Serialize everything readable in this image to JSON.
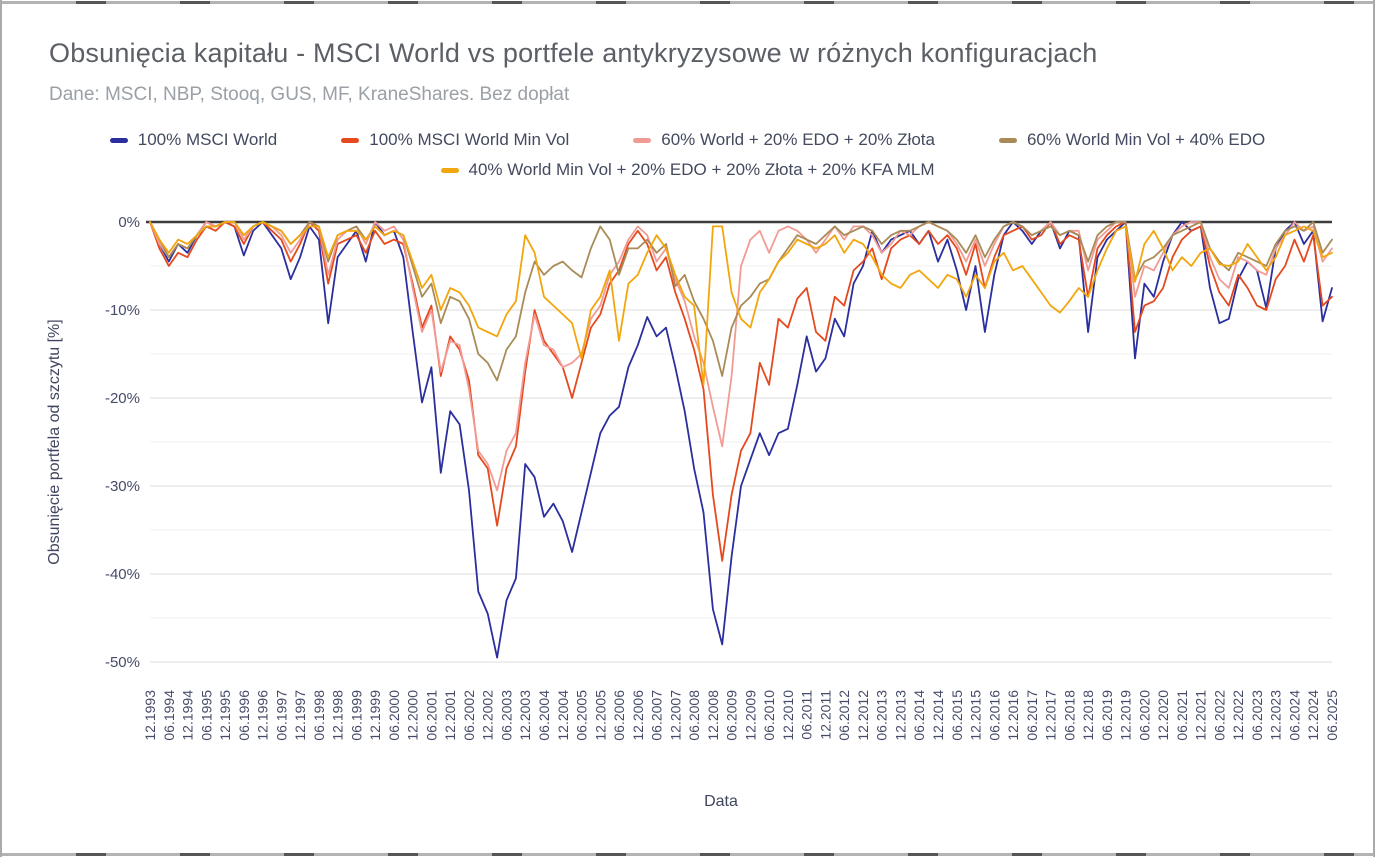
{
  "page": {
    "title": "Obsunięcia kapitału - MSCI World vs portfele antykryzysowe w różnych konfiguracjach",
    "subtitle": "Dane: MSCI, NBP, Stooq, GUS, MF, KraneShares. Bez dopłat"
  },
  "axes": {
    "x_title": "Data",
    "y_title": "Obsunięcie portfela od szczytu [%]"
  },
  "colors": {
    "navy": "#2a2f9d",
    "red": "#e5491e",
    "pink": "#f29b94",
    "brown": "#a98b57",
    "yellow": "#f2a60d",
    "grid_major": "#dcdcdc",
    "grid_minor": "#f1f1f1",
    "zero_line": "#3c3c3c",
    "tick_text": "#464b69"
  },
  "chart_data": {
    "type": "line",
    "title": "Obsunięcia kapitału - MSCI World vs portfele antykryzysowe w różnych konfiguracjach",
    "xlabel": "Data",
    "ylabel": "Obsunięcie portfela od szczytu [%]",
    "ylim": [
      -50,
      0
    ],
    "y_major_step": 10,
    "y_minor_step": 5,
    "grid": true,
    "legend_position": "top",
    "y_tick_labels": [
      "0%",
      "-10%",
      "-20%",
      "-30%",
      "-40%",
      "-50%"
    ],
    "x_unit": "quarters from 12.1993 to 06.2025 (labels shown every 2nd quarter)",
    "x_tick_labels": [
      "12.1993",
      "06.1994",
      "12.1994",
      "06.1995",
      "12.1995",
      "06.1996",
      "12.1996",
      "06.1997",
      "12.1997",
      "06.1998",
      "12.1998",
      "06.1999",
      "12.1999",
      "06.2000",
      "12.2000",
      "06.2001",
      "12.2001",
      "06.2002",
      "12.2002",
      "06.2003",
      "12.2003",
      "06.2004",
      "12.2004",
      "06.2005",
      "12.2005",
      "06.2006",
      "12.2006",
      "06.2007",
      "12.2007",
      "06.2008",
      "12.2008",
      "06.2009",
      "12.2009",
      "06.2010",
      "12.2010",
      "06.2011",
      "12.2011",
      "06.2012",
      "12.2012",
      "06.2013",
      "12.2013",
      "06.2014",
      "12.2014",
      "06.2015",
      "12.2015",
      "06.2016",
      "12.2016",
      "06.2017",
      "12.2017",
      "06.2018",
      "12.2018",
      "06.2019",
      "12.2019",
      "06.2020",
      "12.2020",
      "06.2021",
      "12.2021",
      "06.2022",
      "12.2022",
      "06.2023",
      "12.2023",
      "06.2024",
      "12.2024",
      "06.2025"
    ],
    "series": [
      {
        "name": "100% MSCI World",
        "color": "#2a2f9d",
        "values": [
          0,
          -2.5,
          -4.5,
          -2.5,
          -3.5,
          -1.5,
          0,
          -0.5,
          0,
          -0.5,
          -3.8,
          -1,
          0,
          -1.5,
          -3,
          -6.5,
          -4,
          -0.5,
          -2,
          -11.5,
          -4,
          -2.5,
          -1,
          -4.5,
          0,
          -1.5,
          -1,
          -4,
          -12.5,
          -20.5,
          -16.5,
          -28.5,
          -21.5,
          -23,
          -30.5,
          -42,
          -44.5,
          -49.5,
          -43,
          -40.5,
          -27.5,
          -29,
          -33.5,
          -32,
          -34,
          -37.5,
          -33,
          -28.5,
          -24,
          -22,
          -21,
          -16.5,
          -14,
          -10.8,
          -13,
          -12,
          -16.5,
          -21.5,
          -28,
          -33,
          -44,
          -48,
          -38,
          -30,
          -27,
          -24,
          -26.5,
          -24,
          -23.5,
          -18.5,
          -13,
          -17,
          -15.5,
          -11,
          -13,
          -7,
          -5,
          -1,
          -3.5,
          -2,
          -1.5,
          -1,
          -2.5,
          -1,
          -4.5,
          -2,
          -5.5,
          -10,
          -5,
          -12.5,
          -6,
          -1.5,
          0,
          -1,
          -2.5,
          -1,
          0,
          -3,
          -1,
          -1.5,
          -12.5,
          -4,
          -2,
          -1,
          0,
          -15.5,
          -7,
          -8.5,
          -4.5,
          -1.5,
          0,
          -1,
          -0.5,
          -7.5,
          -11.5,
          -11,
          -6.5,
          -4.5,
          -5.5,
          -9.8,
          -3,
          -1,
          0,
          -2.5,
          -1,
          -11.3,
          -7.5
        ]
      },
      {
        "name": "100% MSCI World Min Vol",
        "color": "#e5491e",
        "values": [
          0,
          -3,
          -5,
          -3.5,
          -4,
          -2,
          -0.5,
          -1,
          0,
          -0.5,
          -2.5,
          -0.5,
          0,
          -1,
          -2,
          -4.5,
          -2.5,
          0,
          -1,
          -7,
          -2.5,
          -2,
          -1.5,
          -3.5,
          -1,
          -2.5,
          -2,
          -2.5,
          -7,
          -12,
          -9.5,
          -17.5,
          -13,
          -14.5,
          -18,
          -26.5,
          -28,
          -34.5,
          -28,
          -25.5,
          -17,
          -10,
          -13.5,
          -15,
          -16.5,
          -20,
          -16,
          -12,
          -10.5,
          -7,
          -5.5,
          -2.5,
          -1,
          -2.5,
          -5.5,
          -4,
          -8,
          -11,
          -14.5,
          -19,
          -31,
          -38.5,
          -31,
          -26,
          -24,
          -16,
          -18.5,
          -11,
          -12,
          -8.7,
          -7.5,
          -12.5,
          -13.5,
          -8.5,
          -9.5,
          -5.5,
          -4.5,
          -3,
          -6.5,
          -3,
          -2,
          -1.5,
          -2.5,
          -1,
          -2.5,
          -1.5,
          -3,
          -6,
          -2.5,
          -7.5,
          -4,
          -1.5,
          -1,
          -0.5,
          -2,
          -1.5,
          0,
          -2.5,
          -1.5,
          -2,
          -8.5,
          -3,
          -1.5,
          -0.5,
          0,
          -12.5,
          -9.5,
          -9,
          -7.5,
          -4,
          -2,
          -1,
          -0.5,
          -5,
          -8,
          -9.5,
          -6,
          -7.5,
          -9.5,
          -10,
          -6.5,
          -5,
          -2,
          -4.5,
          -1.5,
          -9.5,
          -8.5
        ]
      },
      {
        "name": "60% World + 20% EDO + 20% Złota",
        "color": "#f29b94",
        "values": [
          0,
          -2.5,
          -4,
          -2.5,
          -3,
          -1.5,
          0,
          -0.5,
          0,
          0,
          -2,
          -0.5,
          0,
          -0.5,
          -1.5,
          -3.5,
          -2,
          0,
          -0.5,
          -6,
          -2,
          -1,
          -0.5,
          -2.5,
          0,
          -1,
          -0.5,
          -2,
          -7.5,
          -12.5,
          -10,
          -17,
          -13.5,
          -14,
          -19,
          -26,
          -27.5,
          -30.5,
          -26,
          -24,
          -16,
          -10.5,
          -14,
          -14.5,
          -16.5,
          -16,
          -15,
          -11,
          -9.5,
          -6,
          -4.5,
          -2,
          -0.5,
          -1.5,
          -4.5,
          -3,
          -6.5,
          -9,
          -13,
          -16,
          -21,
          -25.5,
          -17.5,
          -5,
          -2,
          -1,
          -3.5,
          -1,
          -0.5,
          -1,
          -2,
          -3.5,
          -2,
          -0.5,
          -2,
          -0.5,
          -0.5,
          -1.5,
          -3.5,
          -2.5,
          -1,
          -1.5,
          -0.5,
          0,
          -0.5,
          -1,
          -2.5,
          -4.5,
          -2,
          -5,
          -2.5,
          -0.5,
          0,
          -0.5,
          -1.5,
          -1,
          0,
          -1.5,
          -1,
          -1,
          -5.5,
          -2,
          -1,
          0,
          0,
          -8.5,
          -5,
          -5.5,
          -3.5,
          -1.5,
          -0.5,
          0,
          0,
          -4,
          -6.5,
          -7.5,
          -4,
          -4.5,
          -5.5,
          -6,
          -3,
          -1.5,
          0,
          -1,
          -0.5,
          -4.5,
          -3
        ]
      },
      {
        "name": "60% World Min Vol + 40% EDO",
        "color": "#a98b57",
        "values": [
          0,
          -2,
          -4,
          -2.5,
          -3,
          -1.5,
          -0.5,
          -0.5,
          0,
          0,
          -1.5,
          -0.5,
          0,
          -0.5,
          -1,
          -2.5,
          -1.5,
          0,
          -0.5,
          -4.5,
          -1.5,
          -1,
          -0.5,
          -2,
          -0.5,
          -1.5,
          -1,
          -1.5,
          -5,
          -8.5,
          -7,
          -11.5,
          -8.5,
          -9,
          -11,
          -15,
          -16,
          -18,
          -14.5,
          -13,
          -8,
          -4.5,
          -6,
          -5,
          -4.5,
          -5.5,
          -6.3,
          -3,
          -0.5,
          -2,
          -6,
          -3,
          -3,
          -2,
          -3.5,
          -2.5,
          -7.3,
          -6,
          -9,
          -11,
          -13.5,
          -17.5,
          -12,
          -9.5,
          -8.5,
          -7,
          -6.5,
          -4.5,
          -3,
          -1.5,
          -2,
          -2.5,
          -1.5,
          -0.5,
          -1.5,
          -1,
          -0.5,
          -1,
          -2.5,
          -1.5,
          -1,
          -1,
          -0.5,
          0,
          -0.5,
          -1,
          -2,
          -3.5,
          -1.5,
          -4,
          -2,
          -0.5,
          0,
          -0.5,
          -1.5,
          -1,
          -0.5,
          -1.5,
          -1,
          -1.5,
          -4.5,
          -1.5,
          -0.5,
          0,
          0,
          -6.5,
          -4.5,
          -4,
          -3,
          -1.5,
          -1,
          -0.5,
          0,
          -3,
          -4.5,
          -5.5,
          -3.5,
          -4,
          -4.5,
          -5,
          -2.5,
          -1,
          -0.5,
          -1,
          0,
          -3.5,
          -2
        ]
      },
      {
        "name": "40% World Min Vol + 20% EDO + 20% Złota + 20% KFA MLM",
        "color": "#f2a60d",
        "values": [
          0,
          -2,
          -3.5,
          -2,
          -2.5,
          -1.5,
          -0.5,
          -0.5,
          0,
          0,
          -1.5,
          -0.5,
          0,
          -0.5,
          -1,
          -2.5,
          -1.5,
          -0.5,
          -0.5,
          -4,
          -1.5,
          -1,
          -1,
          -2,
          -0.5,
          -1.5,
          -1,
          -1.5,
          -4.5,
          -7.5,
          -6,
          -10,
          -7.5,
          -8,
          -9.5,
          -12,
          -12.5,
          -13,
          -10.5,
          -9,
          -1.5,
          -3.5,
          -8.5,
          -9.5,
          -10.5,
          -11.5,
          -15.5,
          -10,
          -8.5,
          -5.5,
          -13.5,
          -7,
          -6,
          -3.5,
          -1.5,
          -3,
          -6,
          -8.5,
          -9.5,
          -18.5,
          -0.5,
          -0.5,
          -8,
          -11,
          -12,
          -8,
          -6.5,
          -4.5,
          -3.5,
          -2,
          -2.5,
          -3,
          -2.5,
          -1.5,
          -3.5,
          -2,
          -2.5,
          -4,
          -6,
          -7,
          -7.5,
          -6,
          -5.5,
          -6.5,
          -7.5,
          -6,
          -6.5,
          -8.5,
          -6,
          -7.5,
          -4.5,
          -3.5,
          -5.5,
          -5,
          -6.5,
          -8,
          -9.5,
          -10.3,
          -9,
          -7.5,
          -8.5,
          -5.5,
          -3,
          -1,
          -0.5,
          -6.8,
          -2.5,
          -1,
          -3,
          -5.5,
          -4,
          -5,
          -3.5,
          -3,
          -4.8,
          -5,
          -4.5,
          -2.5,
          -4,
          -5.5,
          -4,
          -1.5,
          -1,
          -0.5,
          -1,
          -4,
          -3.5
        ]
      }
    ]
  }
}
